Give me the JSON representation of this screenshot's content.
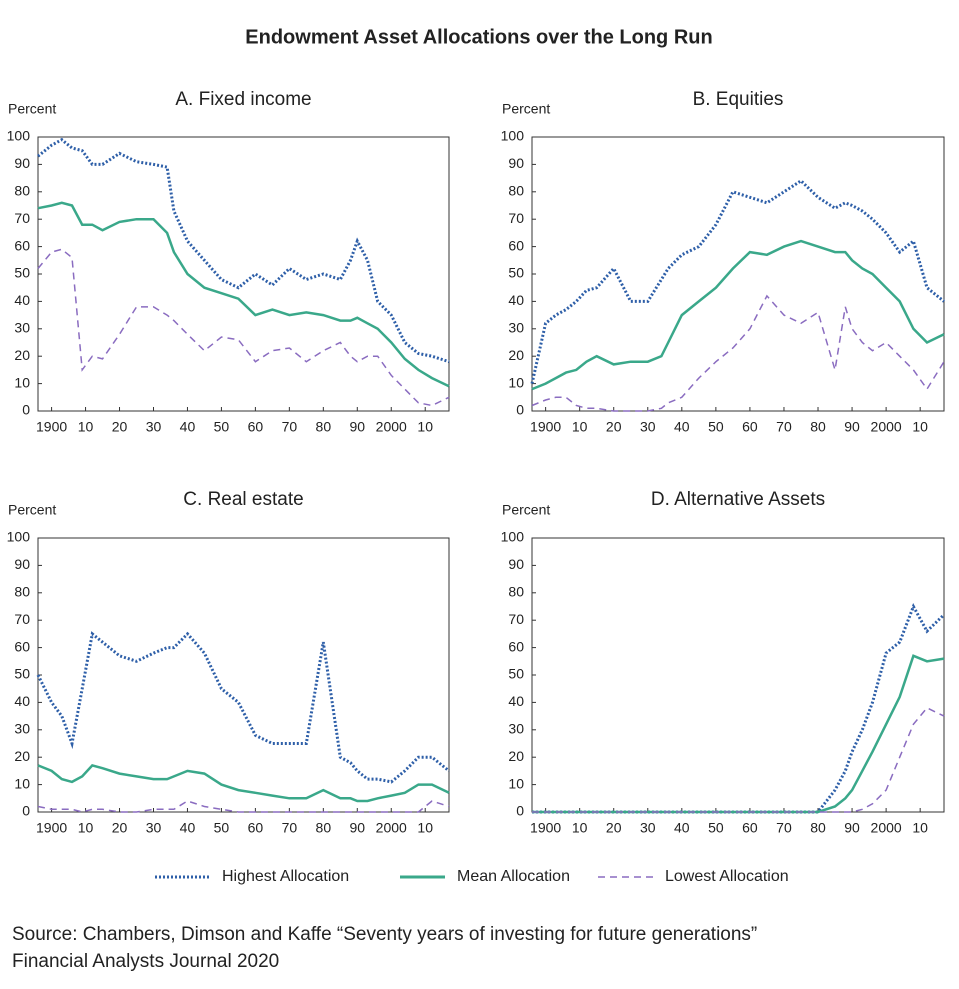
{
  "title": "Endowment Asset Allocations over the Long Run",
  "legend": [
    {
      "name": "Highest Allocation",
      "color": "#2e5fa8"
    },
    {
      "name": "Mean Allocation",
      "color": "#3aa88a"
    },
    {
      "name": "Lowest Allocation",
      "color": "#8a6cc0"
    }
  ],
  "source": [
    "Source: Chambers, Dimson and Kaffe “Seventy years of investing for future generations”",
    "Financial Analysts Journal 2020"
  ],
  "chart_data": [
    {
      "type": "line",
      "title": "A. Fixed income",
      "y_label": "Percent",
      "x": [
        1896,
        1900,
        1903,
        1906,
        1909,
        1912,
        1915,
        1920,
        1925,
        1930,
        1934,
        1936,
        1940,
        1945,
        1950,
        1955,
        1960,
        1965,
        1970,
        1975,
        1980,
        1985,
        1988,
        1990,
        1993,
        1996,
        2000,
        2004,
        2008,
        2012,
        2017
      ],
      "xlim": [
        1896,
        2017
      ],
      "xticks": [
        1900,
        {
          "value": 1910,
          "label": "10"
        },
        {
          "value": 1920,
          "label": "20"
        },
        {
          "value": 1930,
          "label": "30"
        },
        {
          "value": 1940,
          "label": "40"
        },
        {
          "value": 1950,
          "label": "50"
        },
        {
          "value": 1960,
          "label": "60"
        },
        {
          "value": 1970,
          "label": "70"
        },
        {
          "value": 1980,
          "label": "80"
        },
        {
          "value": 1990,
          "label": "90"
        },
        2000,
        {
          "value": 2010,
          "label": "10"
        }
      ],
      "ylim": [
        0,
        100
      ],
      "yticks": [
        0,
        10,
        20,
        30,
        40,
        50,
        60,
        70,
        80,
        90,
        100
      ],
      "series": [
        {
          "values": [
            93,
            97,
            99,
            96,
            95,
            90,
            90,
            94,
            91,
            90,
            89,
            73,
            62,
            55,
            48,
            45,
            50,
            46,
            52,
            48,
            50,
            48,
            55,
            62,
            55,
            40,
            35,
            25,
            21,
            20,
            18
          ]
        },
        {
          "values": [
            74,
            75,
            76,
            75,
            68,
            68,
            66,
            69,
            70,
            70,
            65,
            58,
            50,
            45,
            43,
            41,
            35,
            37,
            35,
            36,
            35,
            33,
            33,
            34,
            32,
            30,
            25,
            19,
            15,
            12,
            9
          ]
        },
        {
          "values": [
            52,
            58,
            59,
            56,
            15,
            20,
            19,
            28,
            38,
            38,
            35,
            33,
            28,
            22,
            27,
            26,
            18,
            22,
            23,
            18,
            22,
            25,
            20,
            18,
            20,
            20,
            13,
            8,
            3,
            2,
            5
          ]
        }
      ]
    },
    {
      "type": "line",
      "title": "B. Equities",
      "y_label": "Percent",
      "x": [
        1896,
        1900,
        1903,
        1906,
        1909,
        1912,
        1915,
        1920,
        1925,
        1930,
        1934,
        1936,
        1940,
        1945,
        1950,
        1955,
        1960,
        1965,
        1970,
        1975,
        1980,
        1985,
        1988,
        1990,
        1993,
        1996,
        2000,
        2004,
        2008,
        2012,
        2017
      ],
      "xlim": [
        1896,
        2017
      ],
      "xticks": [
        1900,
        {
          "value": 1910,
          "label": "10"
        },
        {
          "value": 1920,
          "label": "20"
        },
        {
          "value": 1930,
          "label": "30"
        },
        {
          "value": 1940,
          "label": "40"
        },
        {
          "value": 1950,
          "label": "50"
        },
        {
          "value": 1960,
          "label": "60"
        },
        {
          "value": 1970,
          "label": "70"
        },
        {
          "value": 1980,
          "label": "80"
        },
        {
          "value": 1990,
          "label": "90"
        },
        2000,
        {
          "value": 2010,
          "label": "10"
        }
      ],
      "ylim": [
        0,
        100
      ],
      "yticks": [
        0,
        10,
        20,
        30,
        40,
        50,
        60,
        70,
        80,
        90,
        100
      ],
      "series": [
        {
          "values": [
            10,
            32,
            35,
            37,
            40,
            44,
            45,
            52,
            40,
            40,
            48,
            52,
            57,
            60,
            68,
            80,
            78,
            76,
            80,
            84,
            78,
            74,
            76,
            75,
            73,
            70,
            65,
            58,
            62,
            45,
            40
          ]
        },
        {
          "values": [
            8,
            10,
            12,
            14,
            15,
            18,
            20,
            17,
            18,
            18,
            20,
            25,
            35,
            40,
            45,
            52,
            58,
            57,
            60,
            62,
            60,
            58,
            58,
            55,
            52,
            50,
            45,
            40,
            30,
            25,
            28
          ]
        },
        {
          "values": [
            2,
            4,
            5,
            5,
            2,
            1,
            1,
            0,
            0,
            0,
            1,
            3,
            5,
            12,
            18,
            23,
            30,
            42,
            35,
            32,
            36,
            15,
            38,
            30,
            25,
            22,
            25,
            20,
            15,
            8,
            18
          ]
        }
      ]
    },
    {
      "type": "line",
      "title": "C. Real estate",
      "y_label": "Percent",
      "x": [
        1896,
        1900,
        1903,
        1906,
        1909,
        1912,
        1915,
        1920,
        1925,
        1930,
        1934,
        1936,
        1940,
        1945,
        1950,
        1955,
        1960,
        1965,
        1970,
        1975,
        1980,
        1985,
        1988,
        1990,
        1993,
        1996,
        2000,
        2004,
        2008,
        2012,
        2017
      ],
      "xlim": [
        1896,
        2017
      ],
      "xticks": [
        1900,
        {
          "value": 1910,
          "label": "10"
        },
        {
          "value": 1920,
          "label": "20"
        },
        {
          "value": 1930,
          "label": "30"
        },
        {
          "value": 1940,
          "label": "40"
        },
        {
          "value": 1950,
          "label": "50"
        },
        {
          "value": 1960,
          "label": "60"
        },
        {
          "value": 1970,
          "label": "70"
        },
        {
          "value": 1980,
          "label": "80"
        },
        {
          "value": 1990,
          "label": "90"
        },
        2000,
        {
          "value": 2010,
          "label": "10"
        }
      ],
      "ylim": [
        0,
        100
      ],
      "yticks": [
        0,
        10,
        20,
        30,
        40,
        50,
        60,
        70,
        80,
        90,
        100
      ],
      "series": [
        {
          "values": [
            50,
            40,
            35,
            25,
            45,
            65,
            62,
            57,
            55,
            58,
            60,
            60,
            65,
            58,
            45,
            40,
            28,
            25,
            25,
            25,
            62,
            20,
            18,
            15,
            12,
            12,
            11,
            15,
            20,
            20,
            15
          ]
        },
        {
          "values": [
            17,
            15,
            12,
            11,
            13,
            17,
            16,
            14,
            13,
            12,
            12,
            13,
            15,
            14,
            10,
            8,
            7,
            6,
            5,
            5,
            8,
            5,
            5,
            4,
            4,
            5,
            6,
            7,
            10,
            10,
            7
          ]
        },
        {
          "values": [
            2,
            1,
            1,
            1,
            0,
            1,
            1,
            0,
            0,
            1,
            1,
            1,
            4,
            2,
            1,
            0,
            0,
            0,
            0,
            0,
            0,
            0,
            0,
            0,
            0,
            0,
            0,
            0,
            0,
            4,
            2
          ]
        }
      ]
    },
    {
      "type": "line",
      "title": "D. Alternative Assets",
      "y_label": "Percent",
      "x": [
        1896,
        1900,
        1903,
        1906,
        1909,
        1912,
        1915,
        1920,
        1925,
        1930,
        1934,
        1936,
        1940,
        1945,
        1950,
        1955,
        1960,
        1965,
        1970,
        1975,
        1980,
        1985,
        1988,
        1990,
        1993,
        1996,
        2000,
        2004,
        2008,
        2012,
        2017
      ],
      "xlim": [
        1896,
        2017
      ],
      "xticks": [
        1900,
        {
          "value": 1910,
          "label": "10"
        },
        {
          "value": 1920,
          "label": "20"
        },
        {
          "value": 1930,
          "label": "30"
        },
        {
          "value": 1940,
          "label": "40"
        },
        {
          "value": 1950,
          "label": "50"
        },
        {
          "value": 1960,
          "label": "60"
        },
        {
          "value": 1970,
          "label": "70"
        },
        {
          "value": 1980,
          "label": "80"
        },
        {
          "value": 1990,
          "label": "90"
        },
        2000,
        {
          "value": 2010,
          "label": "10"
        }
      ],
      "ylim": [
        0,
        100
      ],
      "yticks": [
        0,
        10,
        20,
        30,
        40,
        50,
        60,
        70,
        80,
        90,
        100
      ],
      "series": [
        {
          "values": [
            0,
            0,
            0,
            0,
            0,
            0,
            0,
            0,
            0,
            0,
            0,
            0,
            0,
            0,
            0,
            0,
            0,
            0,
            0,
            0,
            0,
            8,
            15,
            22,
            30,
            40,
            58,
            62,
            75,
            66,
            72
          ]
        },
        {
          "values": [
            0,
            0,
            0,
            0,
            0,
            0,
            0,
            0,
            0,
            0,
            0,
            0,
            0,
            0,
            0,
            0,
            0,
            0,
            0,
            0,
            0,
            2,
            5,
            8,
            15,
            22,
            32,
            42,
            57,
            55,
            56
          ]
        },
        {
          "values": [
            0,
            0,
            0,
            0,
            0,
            0,
            0,
            0,
            0,
            0,
            0,
            0,
            0,
            0,
            0,
            0,
            0,
            0,
            0,
            0,
            0,
            0,
            0,
            0,
            1,
            3,
            8,
            20,
            32,
            38,
            35
          ]
        }
      ]
    }
  ]
}
